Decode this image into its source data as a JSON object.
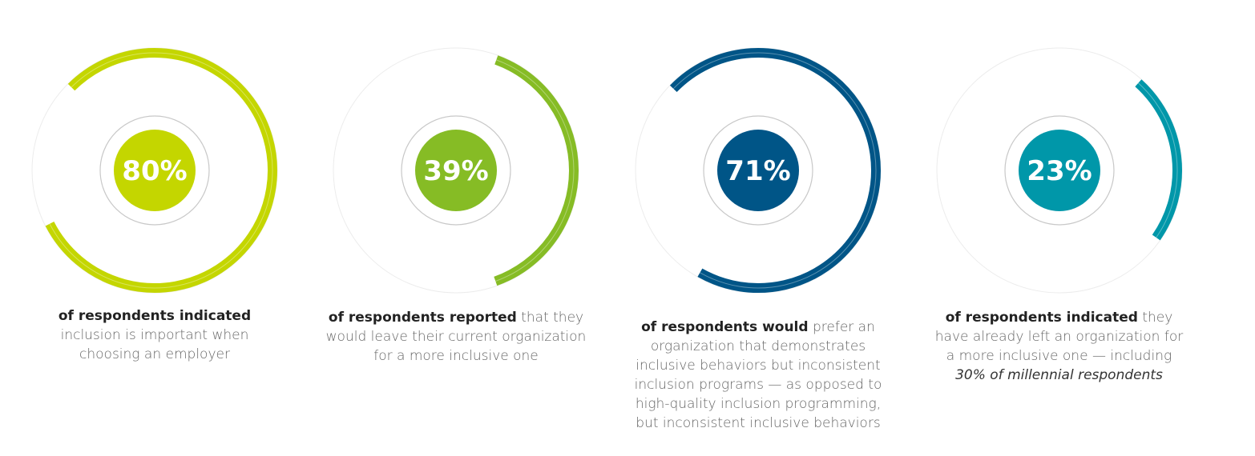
{
  "chart_data": {
    "type": "radial-progress",
    "items": [
      {
        "value": 80,
        "label": "80%",
        "color": "#c4d600",
        "start_deg": -45,
        "bold": "of respondents indicated",
        "rest": "inclusion is important when choosing an employer",
        "italic": ""
      },
      {
        "value": 39,
        "label": "39%",
        "color": "#86bc25",
        "start_deg": 20,
        "bold": "of respondents reported",
        "rest": "that they would leave their current organization for a more inclusive one",
        "italic": ""
      },
      {
        "value": 71,
        "label": "71%",
        "color": "#005587",
        "start_deg": -46,
        "bold": "of respondents would",
        "rest": "prefer an organization that demonstrates inclusive behaviors but inconsistent inclusion programs — as opposed to high-quality inclusion programming, but inconsistent inclusive behaviors",
        "italic": ""
      },
      {
        "value": 23,
        "label": "23%",
        "color": "#0097a9",
        "start_deg": 42,
        "bold": "of respondents indicated",
        "rest": "they have already left an organization for a more inclusive one — including",
        "italic": "30% of millennial respondents"
      }
    ]
  }
}
